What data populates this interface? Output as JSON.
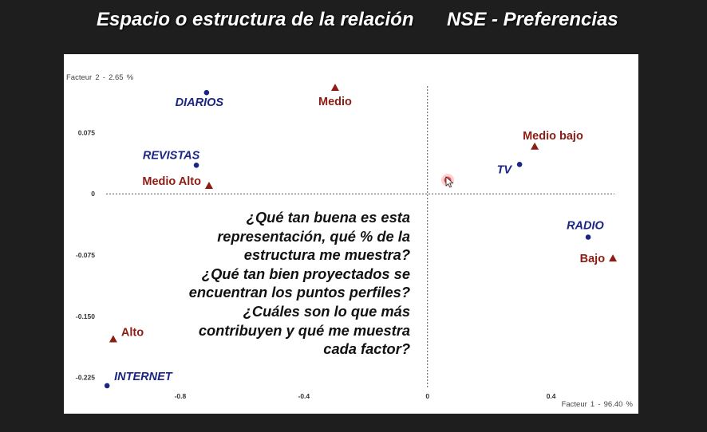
{
  "slide": {
    "title_main": "Espacio o estructura de la relación",
    "title_sub": "NSE - Preferencias",
    "background_color": "#1e1e1e",
    "title_color": "#ffffff",
    "panel_color": "#ffffff"
  },
  "questions": {
    "lines": [
      "¿Qué tan buena es esta",
      "representación, qué % de la",
      "estructura me muestra?",
      "¿Qué tan bien proyectados se",
      "encuentran los puntos perfiles?",
      "¿Cuáles son lo que más",
      "contribuyen y qué me muestra",
      "cada factor?"
    ]
  },
  "chart_data": {
    "type": "scatter",
    "xlabel": "Facteur 1 - 96.40 %",
    "ylabel": "Facteur 2 - 2.65 %",
    "xlim": [
      -1.04,
      0.605
    ],
    "ylim": [
      -0.239,
      0.132
    ],
    "xticks": [
      -0.8,
      -0.4,
      0,
      0.4
    ],
    "xtick_labels": [
      "-0.8",
      "-0.4",
      "0",
      "0.4"
    ],
    "yticks": [
      0.075,
      0,
      -0.075,
      -0.15,
      -0.225
    ],
    "ytick_labels": [
      "0.075",
      "0",
      "-0.075",
      "-0.150",
      "-0.225"
    ],
    "grid": false,
    "reference_lines": [
      {
        "axis": "x",
        "value": 0,
        "style": "dotted"
      },
      {
        "axis": "y",
        "value": 0,
        "style": "dotted"
      }
    ],
    "series": [
      {
        "marker": "circle",
        "color": "#1b2585",
        "points": [
          {
            "label": "DIARIOS",
            "x": -0.715,
            "y": 0.124
          },
          {
            "label": "REVISTAS",
            "x": -0.748,
            "y": 0.035
          },
          {
            "label": "TV",
            "x": 0.298,
            "y": 0.036
          },
          {
            "label": "RADIO",
            "x": 0.52,
            "y": -0.053
          },
          {
            "label": "INTERNET",
            "x": -1.037,
            "y": -0.235
          }
        ]
      },
      {
        "marker": "triangle",
        "color": "#8c1d15",
        "points": [
          {
            "label": "Medio",
            "x": -0.299,
            "y": 0.13
          },
          {
            "label": "Medio Alto",
            "x": -0.707,
            "y": 0.01
          },
          {
            "label": "Medio bajo",
            "x": 0.347,
            "y": 0.058
          },
          {
            "label": "Bajo",
            "x": 0.6,
            "y": -0.079
          },
          {
            "label": "Alto",
            "x": -1.017,
            "y": -0.178
          }
        ]
      }
    ]
  }
}
